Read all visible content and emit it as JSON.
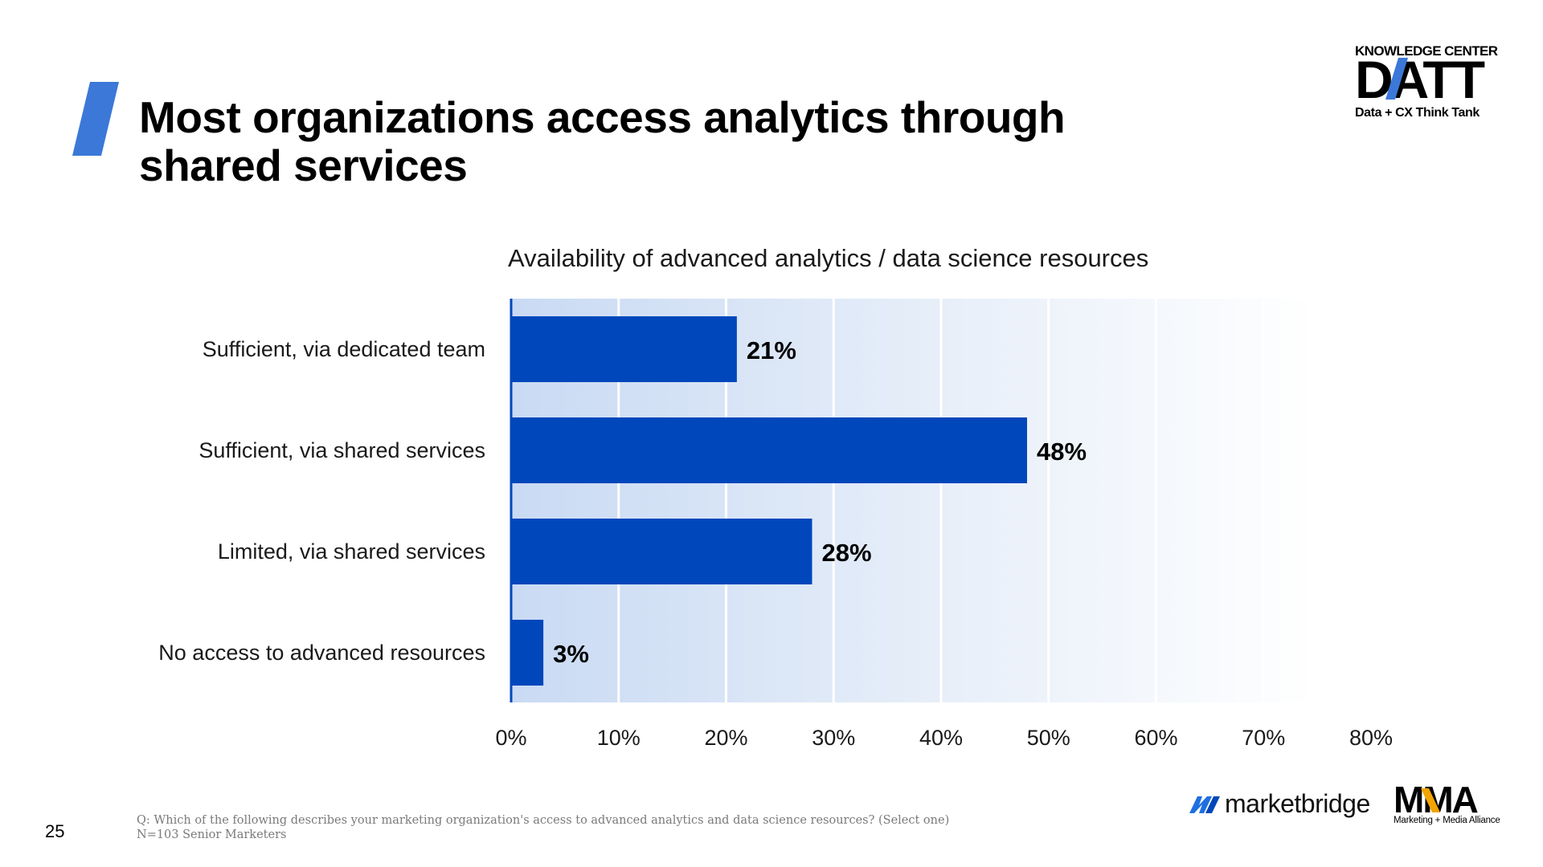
{
  "slide": {
    "title": "Most organizations access analytics through shared services",
    "page_number": "25",
    "footnote_question": "Q: Which of the following describes your marketing organization's access to advanced analytics and data science resources? (Select one)",
    "footnote_n": "N=103 Senior Marketers"
  },
  "brand": {
    "datt_header": "KNOWLEDGE CENTER",
    "datt_word": "DATT",
    "datt_sub": "Data + CX Think Tank",
    "marketbridge": "marketbridge",
    "mma_sub": "Marketing + Media Alliance",
    "mma_word": "MMA"
  },
  "colors": {
    "bar": "#0047bb",
    "accent": "#3b78d8",
    "gradient_start": "#c9daf3",
    "gridline": "#ffffff"
  },
  "chart_data": {
    "type": "bar",
    "orientation": "horizontal",
    "title": "Availability of advanced analytics / data science resources",
    "categories": [
      "Sufficient, via dedicated team",
      "Sufficient, via shared services",
      "Limited, via shared services",
      "No access to advanced resources"
    ],
    "values": [
      21,
      48,
      28,
      3
    ],
    "data_labels": [
      "21%",
      "48%",
      "28%",
      "3%"
    ],
    "xlim": [
      0,
      80
    ],
    "xticks": [
      0,
      10,
      20,
      30,
      40,
      50,
      60,
      70,
      80
    ],
    "xtick_labels": [
      "0%",
      "10%",
      "20%",
      "30%",
      "40%",
      "50%",
      "60%",
      "70%",
      "80%"
    ],
    "grid": true,
    "legend": "none"
  }
}
